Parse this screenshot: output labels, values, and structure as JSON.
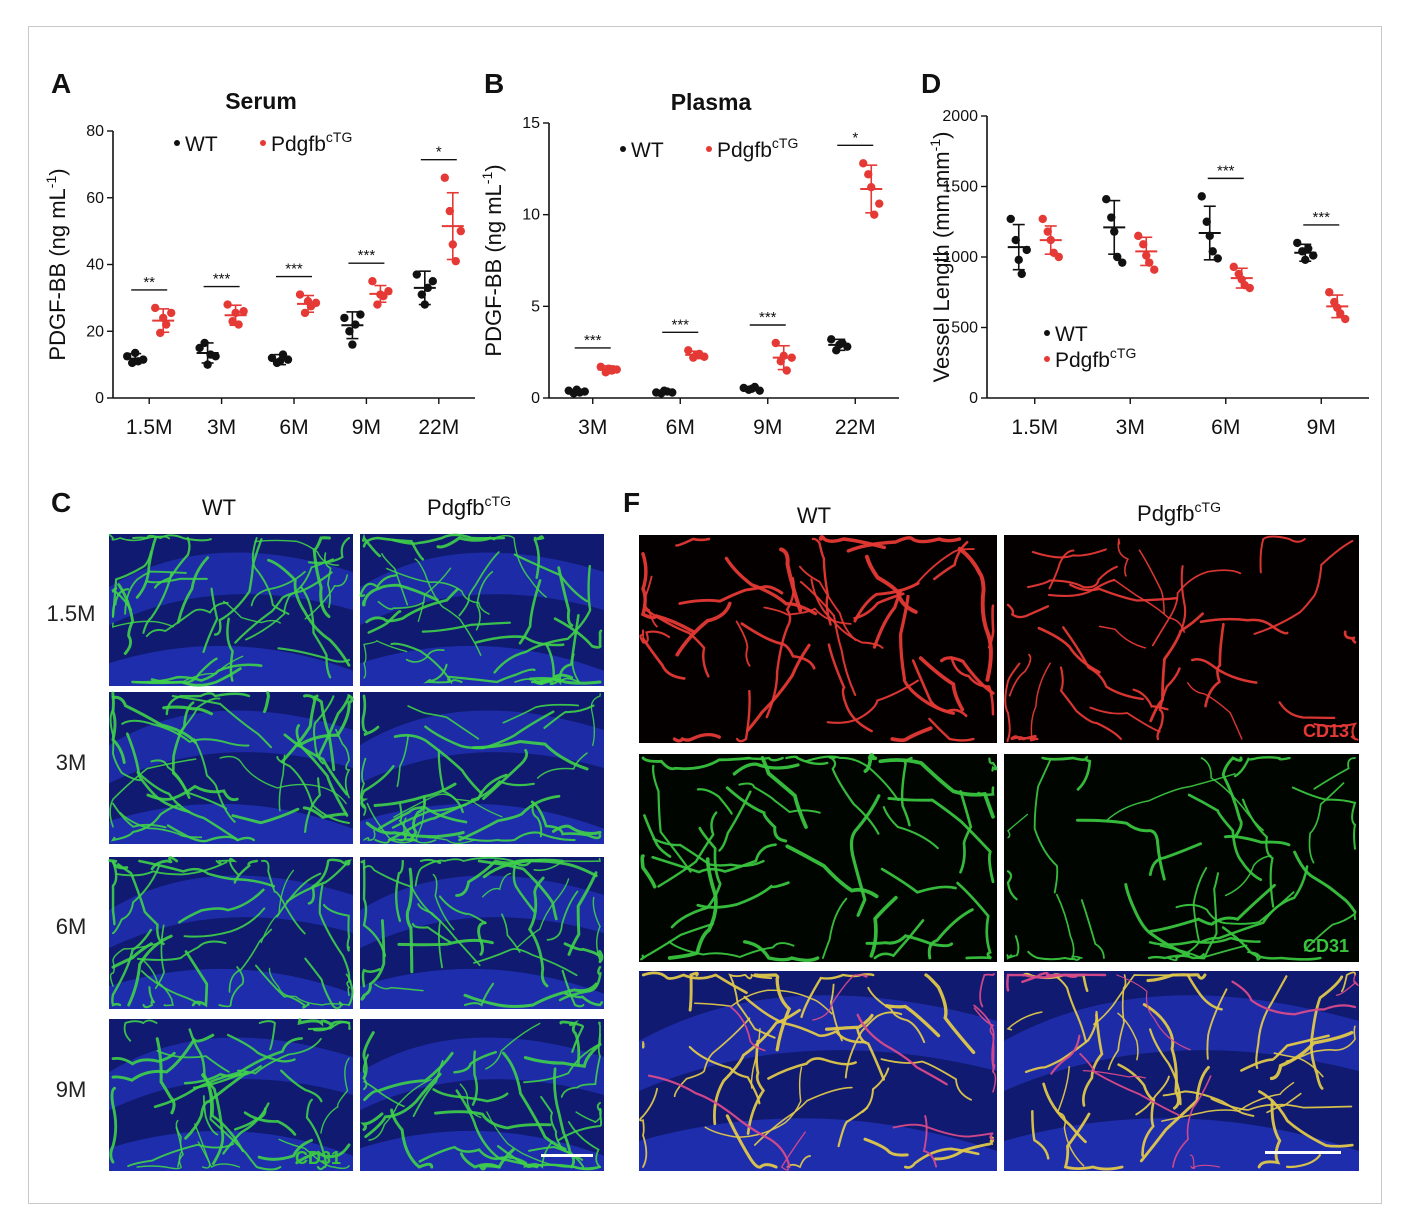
{
  "colors": {
    "wt": "#111111",
    "tg": "#e53935",
    "cd13": "#e53935",
    "cd31": "#39c43e",
    "background_blue": "#1a2a9a"
  },
  "panels": {
    "A": {
      "letter": "A"
    },
    "B": {
      "letter": "B"
    },
    "D": {
      "letter": "D"
    },
    "C": {
      "letter": "C",
      "col_labels": [
        "WT",
        "Pdgfb",
        "cTG"
      ],
      "row_labels": [
        "1.5M",
        "3M",
        "6M",
        "9M"
      ],
      "stain": "CD31"
    },
    "F": {
      "letter": "F",
      "col_labels": [
        "WT",
        "Pdgfb",
        "cTG"
      ],
      "stains": [
        "CD13",
        "CD31"
      ]
    }
  },
  "chart_data": [
    {
      "id": "A",
      "type": "scatter",
      "title": "Serum",
      "ylabel": "PDGF-BB (ng mL",
      "ylabel_sup": "-1",
      "ylabel_close": ")",
      "ylim": [
        0,
        80
      ],
      "yticks": [
        0,
        20,
        40,
        60,
        80
      ],
      "categories": [
        "1.5M",
        "3M",
        "6M",
        "9M",
        "22M"
      ],
      "legend": {
        "wt": "WT",
        "tg": "Pdgfb",
        "tg_sup": "cTG",
        "placement": "top"
      },
      "significance": [
        "**",
        "***",
        "***",
        "***",
        "*"
      ],
      "series": [
        {
          "key": "wt",
          "mean": [
            11.8,
            13.5,
            11.5,
            21.8,
            33
          ],
          "sd": [
            1.5,
            3,
            1.5,
            4,
            5
          ],
          "points": [
            [
              12.5,
              10.5,
              13.5,
              11,
              11.5
            ],
            [
              15,
              16.5,
              10,
              13,
              12.5
            ],
            [
              12,
              10.5,
              11,
              13,
              11.5
            ],
            [
              24,
              20,
              16,
              22,
              25
            ],
            [
              37,
              31,
              28,
              33,
              35
            ]
          ]
        },
        {
          "key": "tg",
          "mean": [
            23.2,
            24.8,
            28.2,
            31.2,
            51.5
          ],
          "sd": [
            3.5,
            3,
            2.5,
            2.5,
            10
          ],
          "points": [
            [
              27,
              19.5,
              24,
              22,
              25.5
            ],
            [
              28,
              23,
              25.5,
              22,
              26
            ],
            [
              31,
              25.5,
              29,
              27.5,
              28.5
            ],
            [
              35,
              28,
              31,
              30.5,
              32
            ],
            [
              66,
              56,
              46,
              41,
              50
            ]
          ]
        }
      ]
    },
    {
      "id": "B",
      "type": "scatter",
      "title": "Plasma",
      "ylabel": "PDGF-BB (ng mL",
      "ylabel_sup": "-1",
      "ylabel_close": ")",
      "ylim": [
        0,
        15
      ],
      "yticks": [
        0,
        5,
        10,
        15
      ],
      "categories": [
        "3M",
        "6M",
        "9M",
        "22M"
      ],
      "legend": {
        "wt": "WT",
        "tg": "Pdgfb",
        "tg_sup": "cTG",
        "placement": "top"
      },
      "significance": [
        "***",
        "***",
        "***",
        "*"
      ],
      "series": [
        {
          "key": "wt",
          "mean": [
            0.35,
            0.32,
            0.5,
            2.9
          ],
          "sd": [
            0.1,
            0.1,
            0.1,
            0.3
          ],
          "points": [
            [
              0.4,
              0.25,
              0.45,
              0.3,
              0.35
            ],
            [
              0.3,
              0.25,
              0.4,
              0.35,
              0.3
            ],
            [
              0.55,
              0.45,
              0.5,
              0.6,
              0.4
            ],
            [
              3.2,
              2.6,
              2.9,
              3.0,
              2.8
            ]
          ]
        },
        {
          "key": "tg",
          "mean": [
            1.55,
            2.35,
            2.2,
            11.4
          ],
          "sd": [
            0.2,
            0.2,
            0.65,
            1.3
          ],
          "points": [
            [
              1.7,
              1.4,
              1.6,
              1.5,
              1.55
            ],
            [
              2.6,
              2.2,
              2.35,
              2.4,
              2.25
            ],
            [
              3.0,
              2.0,
              2.3,
              1.5,
              2.2
            ],
            [
              12.8,
              12.2,
              11.5,
              10.0,
              10.6
            ]
          ]
        }
      ]
    },
    {
      "id": "D",
      "type": "scatter",
      "title": "",
      "ylabel": "Vessel Length (mm.mm",
      "ylabel_sup": "-1",
      "ylabel_close": ")",
      "ylim": [
        0,
        2000
      ],
      "yticks": [
        0,
        500,
        1000,
        1500,
        2000
      ],
      "categories": [
        "1.5M",
        "3M",
        "6M",
        "9M"
      ],
      "legend": {
        "wt": "WT",
        "tg": "Pdgfb",
        "tg_sup": "cTG",
        "placement": "bottom-left"
      },
      "significance": [
        "",
        "",
        "***",
        "***"
      ],
      "series": [
        {
          "key": "wt",
          "mean": [
            1070,
            1210,
            1170,
            1030
          ],
          "sd": [
            160,
            190,
            190,
            60
          ],
          "points": [
            [
              1270,
              1120,
              980,
              880,
              1050
            ],
            [
              1410,
              1280,
              1180,
              1000,
              960
            ],
            [
              1430,
              1250,
              1150,
              1040,
              990
            ],
            [
              1100,
              1040,
              980,
              1060,
              1010
            ]
          ]
        },
        {
          "key": "tg",
          "mean": [
            1120,
            1040,
            850,
            650
          ],
          "sd": [
            100,
            100,
            70,
            80
          ],
          "points": [
            [
              1270,
              1180,
              1120,
              1030,
              1000
            ],
            [
              1150,
              1090,
              1010,
              960,
              910
            ],
            [
              930,
              880,
              840,
              800,
              780
            ],
            [
              750,
              680,
              640,
              600,
              560
            ]
          ]
        }
      ]
    }
  ]
}
